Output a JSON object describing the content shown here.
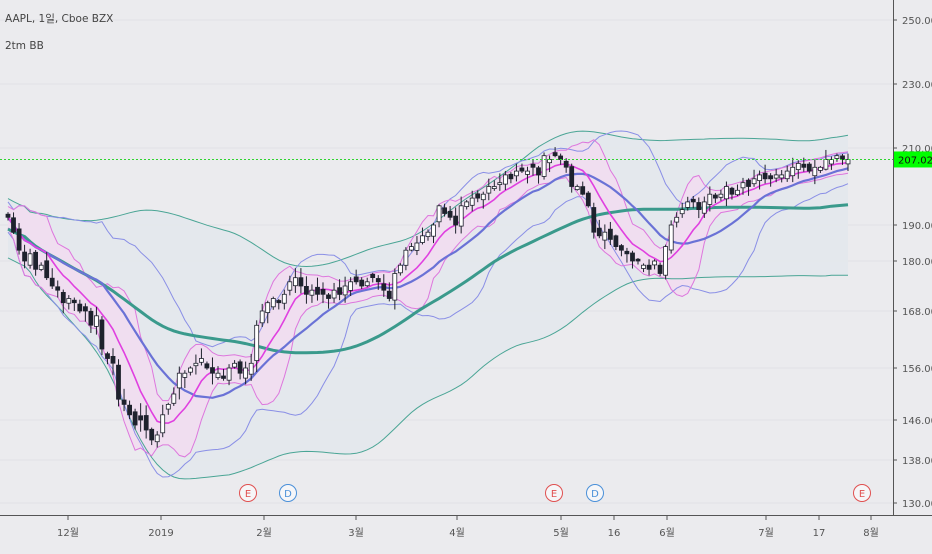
{
  "header": {
    "symbol_line": "AAPL, 1일, Cboe BZX",
    "indicator_line": "2tm BB"
  },
  "price_axis": {
    "ticks": [
      "250.00",
      "230.00",
      "210.00",
      "190.00",
      "180.00",
      "168.00",
      "156.00",
      "146.00",
      "138.00",
      "130.00"
    ],
    "current_price_label": "207.02"
  },
  "time_axis": {
    "ticks": [
      "12월",
      "2019",
      "2월",
      "3월",
      "4월",
      "5월",
      "16",
      "6월",
      "7월",
      "17",
      "8월"
    ]
  },
  "events": [
    {
      "label": "E",
      "type": "earnings"
    },
    {
      "label": "D",
      "type": "dividend"
    },
    {
      "label": "E",
      "type": "earnings"
    },
    {
      "label": "D",
      "type": "dividend"
    },
    {
      "label": "E",
      "type": "earnings"
    }
  ],
  "colors": {
    "background": "#ebebee",
    "grid": "#e2e2e6",
    "candle_up": "#ffffff",
    "candle_down": "#1e222d",
    "current_price_line": "#2fd52f",
    "current_price_badge": "#00ff00",
    "bb_short_fill": "#f2dcf0",
    "bb_short_band": "#dd77dd",
    "bb_short_mid": "#e040e0",
    "bb_mid_band": "#8a8fe6",
    "bb_mid_mid": "#6a72d6",
    "bb_long_fill": "#e3e8ec",
    "bb_long_band": "#4aa595",
    "bb_long_mid": "#3a9a8c",
    "earnings": "#e05050",
    "dividend": "#4a90d9"
  },
  "chart_data": {
    "type": "candlestick",
    "title": "AAPL, 1일, Cboe BZX",
    "x_start": "2018-11-20",
    "x_end": "2019-07-25",
    "ylim": [
      130,
      250
    ],
    "y_scale": "log",
    "current_price": 207.02,
    "series": [
      {
        "name": "2tm BB",
        "type": "bollinger_bands"
      }
    ],
    "closes": [
      192,
      188,
      183,
      180,
      182,
      178,
      179,
      176,
      174,
      173,
      170,
      171,
      170,
      168,
      168,
      165,
      167,
      160,
      158,
      157,
      150,
      149,
      147,
      145,
      146,
      144,
      142,
      143,
      147,
      149,
      151,
      155,
      155,
      156,
      157,
      158,
      156,
      155,
      155,
      154,
      156,
      157,
      155,
      156,
      157,
      165,
      168,
      170,
      171,
      170,
      172,
      175,
      176,
      174,
      172,
      173,
      172,
      172,
      171,
      173,
      172,
      174,
      175,
      175,
      174,
      175,
      176,
      175,
      173,
      171,
      177,
      179,
      183,
      184,
      185,
      187,
      188,
      190,
      195,
      193,
      192,
      190,
      195,
      196,
      197,
      197,
      198,
      200,
      200,
      201,
      203,
      202,
      204,
      204,
      204,
      205,
      203,
      208,
      207,
      208,
      207,
      205,
      200,
      200,
      198,
      195,
      188,
      187,
      188,
      186,
      184,
      183,
      182,
      180,
      180,
      179,
      178,
      180,
      177,
      184,
      190,
      192,
      194,
      196,
      196,
      194,
      196,
      198,
      197,
      198,
      200,
      198,
      199,
      201,
      200,
      202,
      203,
      202,
      202,
      203,
      203,
      204,
      205,
      206,
      205,
      204,
      205,
      205,
      207,
      207,
      208,
      207,
      207
    ]
  }
}
